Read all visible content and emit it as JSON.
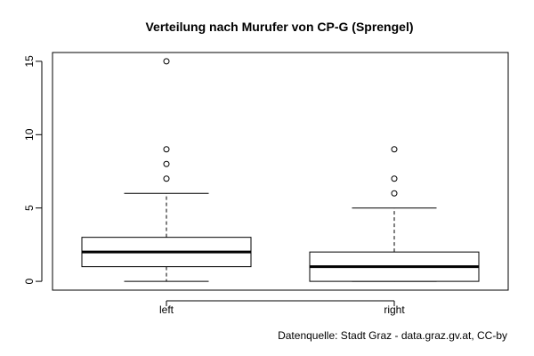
{
  "chart_data": {
    "type": "boxplot",
    "title": "Verteilung nach Murufer von CP-G (Sprengel)",
    "xlabel": "",
    "ylabel": "",
    "categories": [
      "left",
      "right"
    ],
    "ylim": [
      -0.6,
      15.6
    ],
    "y_ticks": [
      0,
      5,
      10,
      15
    ],
    "grid": false,
    "legend": "none",
    "series": [
      {
        "category": "left",
        "lower_whisker": 0,
        "q1": 1,
        "median": 2,
        "q3": 3,
        "upper_whisker": 6,
        "outliers": [
          7,
          8,
          9,
          15
        ]
      },
      {
        "category": "right",
        "lower_whisker": 0,
        "q1": 0,
        "median": 1,
        "q3": 2,
        "upper_whisker": 5,
        "outliers": [
          6,
          7,
          9
        ]
      }
    ]
  },
  "source_note": "Datenquelle: Stadt Graz - data.graz.gv.at, CC-by",
  "colors": {
    "box_fill": "#ffffff",
    "stroke": "#000000"
  }
}
